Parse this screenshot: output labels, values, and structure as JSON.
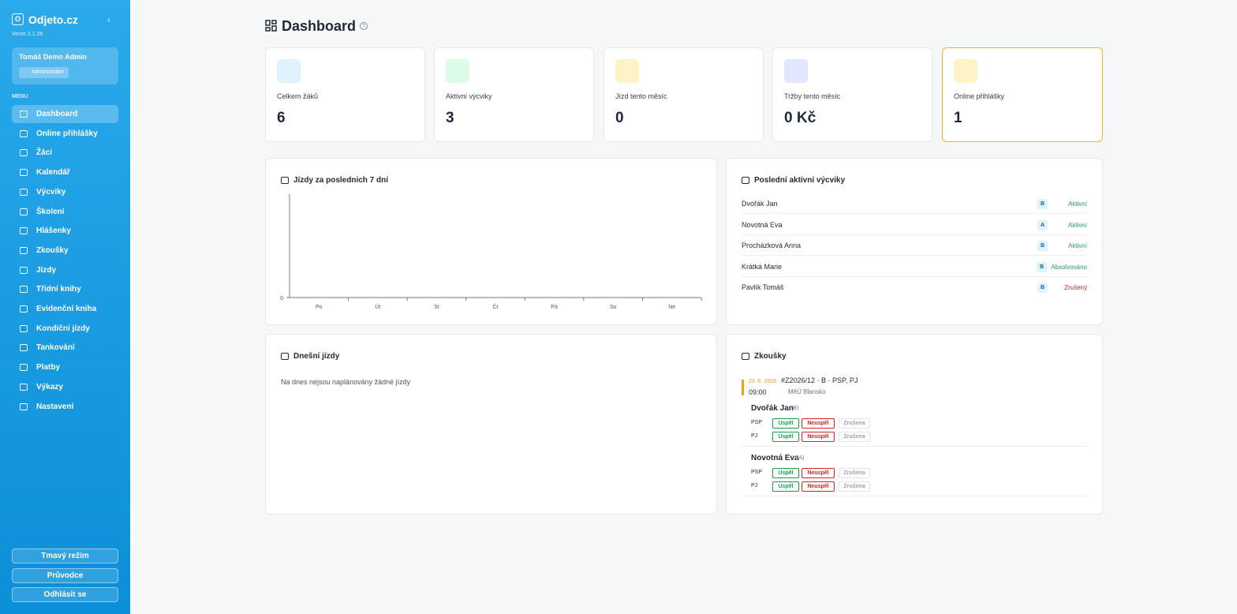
{
  "sidebar": {
    "logo": "O",
    "brand": "Odjeto.cz",
    "version": "Verze 2.1.26",
    "user": {
      "name": "Tomáš Demo Admin",
      "role": "Administrátor"
    },
    "menu_label": "MENU",
    "menu": [
      "Dashboard",
      "Online přihlášky",
      "Žáci",
      "Kalendář",
      "Výcviky",
      "Školení",
      "Hlášenky",
      "Zkoušky",
      "Jízdy",
      "Třídní knihy",
      "Evidenční kniha",
      "Kondiční jízdy",
      "Tankování",
      "Platby",
      "Výkazy",
      "Nastavení"
    ],
    "buttons": [
      "Tmavý režim",
      "Průvodce",
      "Odhlásit se"
    ]
  },
  "header": {
    "title": "Dashboard"
  },
  "stats": [
    {
      "label": "Celkem žáků",
      "value": 6,
      "color": "#e0f2fe"
    },
    {
      "label": "Aktivní výcviky",
      "value": 3,
      "color": "#dcfce7"
    },
    {
      "label": "Jízd tento měsíc",
      "value": 0,
      "color": "#fef3c7"
    },
    {
      "label": "Tržby tento měsíc",
      "value": "0 Kč",
      "color": "#e0e7ff"
    },
    {
      "label": "Online přihlášky",
      "value": 1,
      "color": "#fef3c7"
    }
  ],
  "chart": {
    "type": "bar",
    "title": "Jízdy za posledních 7 dní",
    "categories": [
      "Po",
      "Út",
      "St",
      "Čt",
      "Pá",
      "So",
      "Ne"
    ],
    "values": [
      0,
      0,
      0,
      0,
      0,
      0,
      0
    ],
    "yticks": [
      0
    ],
    "color": "#0ea5e9"
  },
  "courses": {
    "title": "Poslední aktivní výcviky",
    "rows": [
      {
        "name": "Dvořák Jan",
        "category": "B",
        "status": "Aktivní",
        "color": "#22a55a"
      },
      {
        "name": "Novotná Eva",
        "category": "A",
        "status": "Aktivní",
        "color": "#22a55a"
      },
      {
        "name": "Procházková Anna",
        "category": "B",
        "status": "Aktivní",
        "color": "#22a55a"
      },
      {
        "name": "Krátká Marie",
        "category": "B",
        "status": "Absolvováno",
        "color": "#22a55a"
      },
      {
        "name": "Pavlík Tomáš",
        "category": "B",
        "status": "Zrušený",
        "color": "#dc2626"
      }
    ]
  },
  "today": {
    "title": "Dnešní jízdy",
    "empty": "Na dnes nejsou naplánovány žádné jízdy"
  },
  "exams": {
    "title": "Zkoušky",
    "actions": [
      "Uspěl",
      "Neuspěl",
      "Zrušena"
    ],
    "items": [
      {
        "date": "23. 6. 2026",
        "time": "09:00",
        "code": "#Z2026/12 · B · PSP, PJ",
        "place": "MěÚ Blansko",
        "students": [
          {
            "name": "Dvořák Jan",
            "category": "(B)",
            "tests": [
              "PSP",
              "PJ"
            ]
          },
          {
            "name": "Novotná Eva",
            "category": "(A)",
            "tests": [
              "PSP",
              "PJ"
            ]
          }
        ]
      }
    ]
  }
}
